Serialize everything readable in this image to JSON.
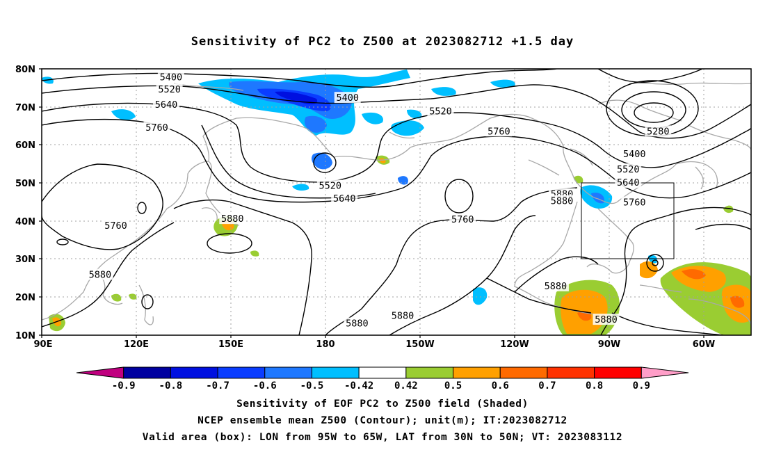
{
  "title": "Sensitivity of PC2 to Z500 at 2023082712 +1.5 day",
  "map": {
    "lat_labels": [
      "80N",
      "70N",
      "60N",
      "50N",
      "40N",
      "30N",
      "20N",
      "10N"
    ],
    "lon_labels": [
      "90E",
      "120E",
      "150E",
      "180",
      "150W",
      "120W",
      "90W",
      "60W"
    ],
    "contour_labels": [
      {
        "text": "5400",
        "lon": 131,
        "lat": 77.7
      },
      {
        "text": "5400",
        "lon": -173,
        "lat": 72.3
      },
      {
        "text": "5520",
        "lon": 130.5,
        "lat": 74.5
      },
      {
        "text": "5520",
        "lon": -143.5,
        "lat": 68.8
      },
      {
        "text": "5640",
        "lon": 129.5,
        "lat": 70.5
      },
      {
        "text": "5760",
        "lon": 126.5,
        "lat": 64.5
      },
      {
        "text": "5760",
        "lon": -125,
        "lat": 63.5
      },
      {
        "text": "5280",
        "lon": -74.5,
        "lat": 63.5
      },
      {
        "text": "5400",
        "lon": -82,
        "lat": 57.5
      },
      {
        "text": "5520",
        "lon": -84,
        "lat": 53.5
      },
      {
        "text": "5520",
        "lon": -178.5,
        "lat": 49.2
      },
      {
        "text": "5640",
        "lon": -84,
        "lat": 50.0
      },
      {
        "text": "5640",
        "lon": -174,
        "lat": 45.8
      },
      {
        "text": "5760",
        "lon": -82,
        "lat": 44.8
      },
      {
        "text": "5760",
        "lon": -136.5,
        "lat": 40.3
      },
      {
        "text": "5760",
        "lon": 113.5,
        "lat": 38.7
      },
      {
        "text": "5880",
        "lon": -105,
        "lat": 47.0
      },
      {
        "text": "5880",
        "lon": -105,
        "lat": 45.2
      },
      {
        "text": "5880",
        "lon": 150.5,
        "lat": 40.5
      },
      {
        "text": "5880",
        "lon": 108.5,
        "lat": 25.8
      },
      {
        "text": "5880",
        "lon": -107,
        "lat": 22.8
      },
      {
        "text": "5880",
        "lon": -155.5,
        "lat": 15.0
      },
      {
        "text": "5880",
        "lon": -170,
        "lat": 13.0
      },
      {
        "text": "5880",
        "lon": -91,
        "lat": 14.0
      }
    ],
    "valid_box": {
      "lon_min": -95,
      "lon_max": -65,
      "lat_min": 30,
      "lat_max": 50
    },
    "colors": {
      "contour": "#000000",
      "coast": "#a8a8a8",
      "grid": "#a0a0a0",
      "box": "#000000"
    }
  },
  "colorbar": {
    "labels": [
      "-0.9",
      "-0.8",
      "-0.7",
      "-0.6",
      "-0.5",
      "-0.42",
      "0.42",
      "0.5",
      "0.6",
      "0.7",
      "0.8",
      "0.9"
    ],
    "colors": [
      "#c0007f",
      "#0000a0",
      "#0010e0",
      "#0a3cff",
      "#1e78ff",
      "#00bfff",
      "#ffffff",
      "#9acd32",
      "#ffa000",
      "#ff6a00",
      "#ff3200",
      "#ff0000",
      "#ff9ec8"
    ]
  },
  "captions": {
    "line1": "Sensitivity of EOF PC2 to Z500 field (Shaded)",
    "line2": "NCEP ensemble mean Z500 (Contour); unit(m); IT:2023082712",
    "line3": "Valid area (box): LON from 95W to 65W, LAT from 30N to 50N; VT: 2023083112"
  }
}
